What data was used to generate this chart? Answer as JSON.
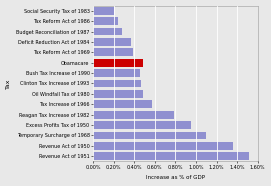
{
  "categories": [
    "Revenue Act of 1951",
    "Revenue Act of 1950",
    "Temporary Surcharge of 1968",
    "Excess Profits Tax of 1950",
    "Reagan Tax Increase of 1982",
    "Tax Increase of 1966",
    "Oil Windfall Tax of 1980",
    "Clinton Tax Increase of 1993",
    "Bush Tax Increase of 1990",
    "Obamacare",
    "Tax Reform Act of 1969",
    "Deficit Reduction Act of 1984",
    "Budget Reconciliation of 1987",
    "Tax Reform Act of 1986",
    "Social Security Tax of 1983"
  ],
  "values": [
    1.52,
    1.36,
    1.1,
    0.95,
    0.79,
    0.57,
    0.49,
    0.47,
    0.46,
    0.49,
    0.39,
    0.37,
    0.28,
    0.24,
    0.2
  ],
  "bar_colors": [
    "#9090d0",
    "#9090d0",
    "#9090d0",
    "#9090d0",
    "#9090d0",
    "#9090d0",
    "#9090d0",
    "#9090d0",
    "#9090d0",
    "#cc0000",
    "#9090d0",
    "#9090d0",
    "#9090d0",
    "#9090d0",
    "#9090d0"
  ],
  "xlabel": "Increase as % of GDP",
  "ylabel": "Tax",
  "xlim": [
    0.0,
    1.6
  ],
  "xticks": [
    0.0,
    0.2,
    0.4,
    0.6,
    0.8,
    1.0,
    1.2,
    1.4,
    1.6
  ],
  "xtick_labels": [
    "0.00%",
    "0.20%",
    "0.40%",
    "0.60%",
    "0.80%",
    "1.00%",
    "1.20%",
    "1.40%",
    "1.60%"
  ],
  "background_color": "#e8e8e8",
  "plot_bg_color": "#e8e8e8",
  "bar_height": 0.75,
  "label_fontsize": 3.5,
  "axis_label_fontsize": 4.0,
  "tick_fontsize": 3.5,
  "ylabel_fontsize": 4.5
}
